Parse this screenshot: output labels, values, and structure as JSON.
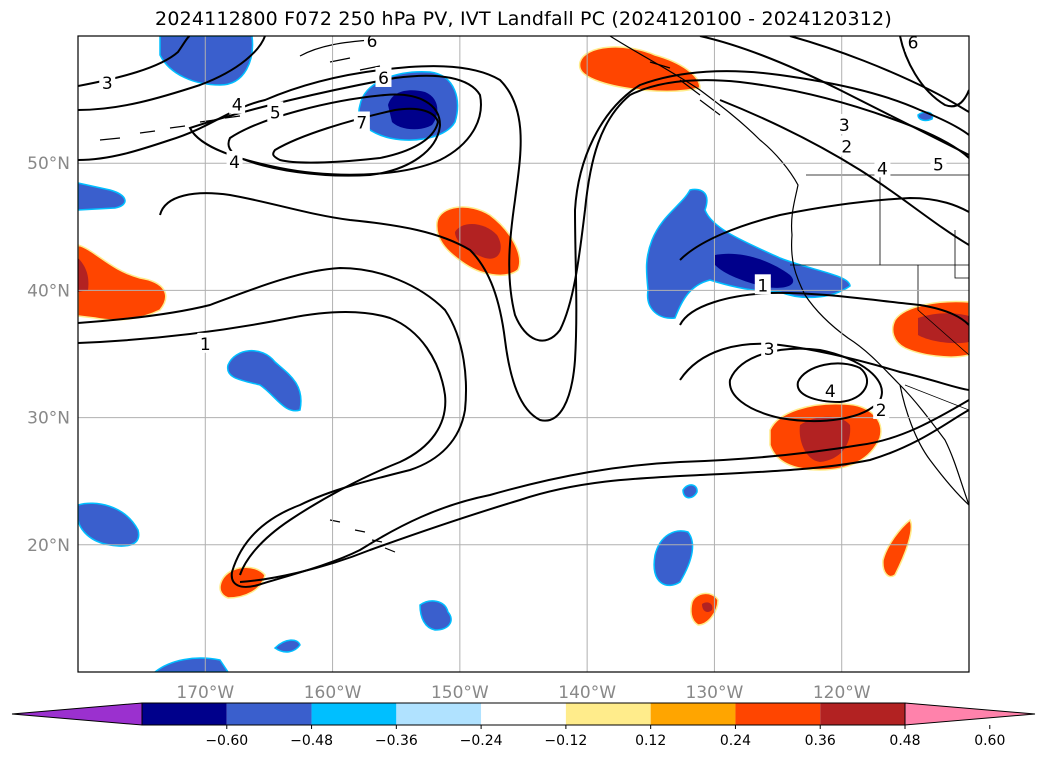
{
  "title": "2024112800 F072 250 hPa PV, IVT Landfall PC (2024120100 - 2024120312)",
  "map": {
    "lon_range": [
      -180,
      -110
    ],
    "lat_range": [
      10,
      60
    ],
    "lat_ticks": [
      {
        "value": 20,
        "label": "20°N"
      },
      {
        "value": 30,
        "label": "30°N"
      },
      {
        "value": 40,
        "label": "40°N"
      },
      {
        "value": 50,
        "label": "50°N"
      }
    ],
    "lon_ticks": [
      {
        "value": -170,
        "label": "170°W"
      },
      {
        "value": -160,
        "label": "160°W"
      },
      {
        "value": -150,
        "label": "150°W"
      },
      {
        "value": -140,
        "label": "140°W"
      },
      {
        "value": -130,
        "label": "130°W"
      },
      {
        "value": -120,
        "label": "120°W"
      }
    ],
    "contour_labels": [
      {
        "text": "3",
        "lon": -177.7,
        "lat": 56.3
      },
      {
        "text": "4",
        "lon": -167.5,
        "lat": 54.6
      },
      {
        "text": "5",
        "lon": -164.5,
        "lat": 54.0
      },
      {
        "text": "6",
        "lon": -156.0,
        "lat": 56.7
      },
      {
        "text": "6",
        "lon": -156.9,
        "lat": 59.6
      },
      {
        "text": "7",
        "lon": -157.7,
        "lat": 53.2
      },
      {
        "text": "4",
        "lon": -167.7,
        "lat": 50.1
      },
      {
        "text": "1",
        "lon": -170.0,
        "lat": 35.8
      },
      {
        "text": "3",
        "lon": -119.8,
        "lat": 53.0
      },
      {
        "text": "2",
        "lon": -119.6,
        "lat": 51.3
      },
      {
        "text": "4",
        "lon": -116.8,
        "lat": 49.6
      },
      {
        "text": "5",
        "lon": -112.4,
        "lat": 49.9
      },
      {
        "text": "6",
        "lon": -114.4,
        "lat": 59.5
      },
      {
        "text": "1",
        "lon": -126.2,
        "lat": 40.4
      },
      {
        "text": "3",
        "lon": -125.7,
        "lat": 35.4
      },
      {
        "text": "4",
        "lon": -120.9,
        "lat": 32.1
      },
      {
        "text": "2",
        "lon": -116.9,
        "lat": 30.6
      }
    ]
  },
  "colorbar": {
    "colors": [
      "#9b30cf",
      "#00008b",
      "#3a5fcd",
      "#00bfff",
      "#b0e2ff",
      "#ffffff",
      "#ffec8b",
      "#ffa500",
      "#ff4500",
      "#b22222",
      "#ff82ab"
    ],
    "tick_labels": [
      "−0.60",
      "−0.48",
      "−0.36",
      "−0.24",
      "−0.12",
      "0.12",
      "0.24",
      "0.36",
      "0.48",
      "0.60"
    ]
  }
}
